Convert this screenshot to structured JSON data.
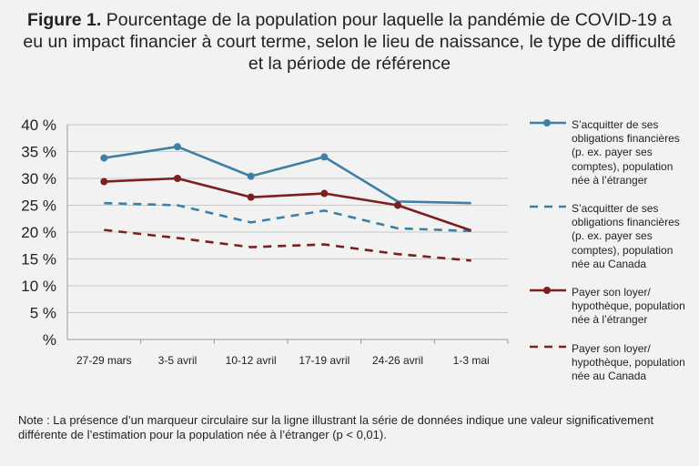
{
  "title": {
    "prefix": "Figure 1.",
    "text": "Pourcentage de la population pour laquelle la pandémie de COVID-19 a eu un impact financier à court terme, selon le lieu de naissance, le type de difficulté et la période de référence"
  },
  "chart_data": {
    "type": "line",
    "categories": [
      "27-29 mars",
      "3-5 avril",
      "10-12 avril",
      "17-19 avril",
      "24-26 avril",
      "1-3 mai"
    ],
    "yticks": [
      "40 %",
      "35 %",
      "30 %",
      "25 %",
      "20 %",
      "15 %",
      "10 %",
      "5 %",
      "%"
    ],
    "ylim": [
      0,
      40
    ],
    "grid": true,
    "legend_position": "right",
    "series": [
      {
        "name": "S’acquitter de ses obligations financières (p. ex. payer ses comptes), population née à l’étranger",
        "values": [
          33.8,
          35.9,
          30.4,
          34.0,
          25.7,
          25.4
        ],
        "color": "#3f7fa6",
        "dash": false,
        "markers": [
          true,
          true,
          true,
          true,
          false,
          false
        ]
      },
      {
        "name": "S’acquitter de ses obligations financières (p. ex. payer ses comptes), population née au Canada",
        "values": [
          25.4,
          25.0,
          21.8,
          24.0,
          20.7,
          20.2
        ],
        "color": "#3f7fa6",
        "dash": true,
        "markers": [
          false,
          false,
          false,
          false,
          false,
          false
        ]
      },
      {
        "name": "Payer son loyer/ hypothèque, population née à l’étranger",
        "values": [
          29.4,
          30.0,
          26.5,
          27.2,
          25.0,
          20.3
        ],
        "color": "#7c1f1f",
        "dash": false,
        "markers": [
          true,
          true,
          true,
          true,
          true,
          false
        ]
      },
      {
        "name": "Payer son loyer/ hypothèque, population née au Canada",
        "values": [
          20.4,
          18.9,
          17.2,
          17.7,
          15.9,
          14.7
        ],
        "color": "#7c1f1f",
        "dash": true,
        "markers": [
          false,
          false,
          false,
          false,
          false,
          false
        ]
      }
    ]
  },
  "legend": {
    "items": [
      "S’acquitter de ses obligations financières (p. ex. payer ses comptes), population née à l’étranger",
      "S’acquitter de ses obligations financières (p. ex. payer ses comptes), population née au Canada",
      "Payer son loyer/ hypothèque, population née à l’étranger",
      "Payer son loyer/ hypothèque, population née au Canada"
    ]
  },
  "note": "Note : La présence d’un marqueur circulaire sur la ligne illustrant la série de données indique une valeur significativement différente  de l’estimation pour la population née à l’étranger (p < 0,01)."
}
